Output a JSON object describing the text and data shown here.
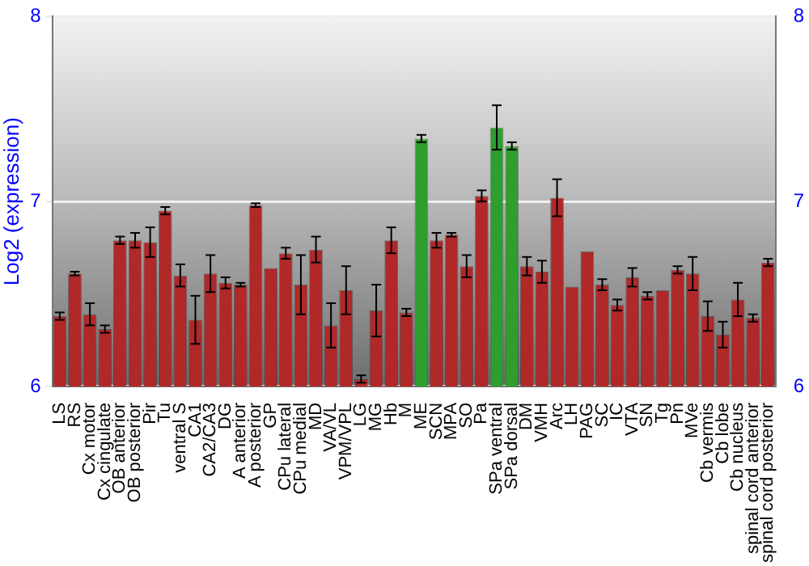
{
  "chart_data": {
    "type": "bar",
    "ylabel": "Log2 (expression)",
    "categories": [
      "LS",
      "RS",
      "Cx motor",
      "Cx cingulate",
      "OB anterior",
      "OB posterior",
      "Pir",
      "Tu",
      "ventral S",
      "CA1",
      "CA2/CA3",
      "DG",
      "A anterior",
      "A posterior",
      "GP",
      "CPu lateral",
      "CPu medial",
      "MD",
      "VA/VL",
      "VPM/VPL",
      "LG",
      "MG",
      "Hb",
      "M",
      "ME",
      "SCN",
      "MPA",
      "SO",
      "Pa",
      "SPa ventral",
      "SPa dorsal",
      "DM",
      "VMH",
      "Arc",
      "LH",
      "PAG",
      "SC",
      "IC",
      "VTA",
      "SN",
      "Tg",
      "Pn",
      "MVe",
      "Cb vermis",
      "Cb lobe",
      "Cb nucleus",
      "spinal cord anterior",
      "spinal cord posterior"
    ],
    "values": [
      6.38,
      6.61,
      6.39,
      6.31,
      6.79,
      6.79,
      6.78,
      6.95,
      6.6,
      6.36,
      6.61,
      6.56,
      6.55,
      6.98,
      6.64,
      6.72,
      6.55,
      6.74,
      6.33,
      6.52,
      6.04,
      6.41,
      6.79,
      6.4,
      7.34,
      6.79,
      6.82,
      6.65,
      7.03,
      7.4,
      7.3,
      6.65,
      6.62,
      7.02,
      6.54,
      6.73,
      6.55,
      6.44,
      6.59,
      6.49,
      6.52,
      6.63,
      6.61,
      6.38,
      6.28,
      6.47,
      6.37,
      6.67
    ],
    "errors": [
      0.02,
      0.01,
      0.06,
      0.02,
      0.02,
      0.04,
      0.08,
      0.02,
      0.06,
      0.13,
      0.1,
      0.03,
      0.01,
      0.01,
      null,
      0.03,
      0.16,
      0.07,
      0.12,
      0.13,
      0.02,
      0.14,
      0.07,
      0.02,
      0.02,
      0.04,
      0.01,
      0.06,
      0.03,
      0.12,
      0.02,
      0.05,
      0.06,
      0.1,
      null,
      null,
      0.03,
      0.03,
      0.05,
      0.02,
      null,
      0.02,
      0.09,
      0.08,
      0.07,
      0.09,
      0.02,
      0.02
    ],
    "colors": [
      "#b02828",
      "#b02828",
      "#b02828",
      "#b02828",
      "#b02828",
      "#b02828",
      "#b02828",
      "#b02828",
      "#b02828",
      "#b02828",
      "#b02828",
      "#b02828",
      "#b02828",
      "#b02828",
      "#b02828",
      "#b02828",
      "#b02828",
      "#b02828",
      "#b02828",
      "#b02828",
      "#b02828",
      "#b02828",
      "#b02828",
      "#b02828",
      "#2e9e2e",
      "#b02828",
      "#b02828",
      "#b02828",
      "#b02828",
      "#2e9e2e",
      "#2e9e2e",
      "#b02828",
      "#b02828",
      "#b02828",
      "#b02828",
      "#b02828",
      "#b02828",
      "#b02828",
      "#b02828",
      "#b02828",
      "#b02828",
      "#b02828",
      "#b02828",
      "#b02828",
      "#b02828",
      "#b02828",
      "#b02828",
      "#b02828"
    ],
    "ylim": [
      6,
      8
    ],
    "yticks": [
      6,
      7,
      8
    ],
    "y2lim": [
      6,
      8
    ],
    "y2ticks": [
      6,
      7,
      8
    ],
    "grid": "y",
    "legend": false
  }
}
